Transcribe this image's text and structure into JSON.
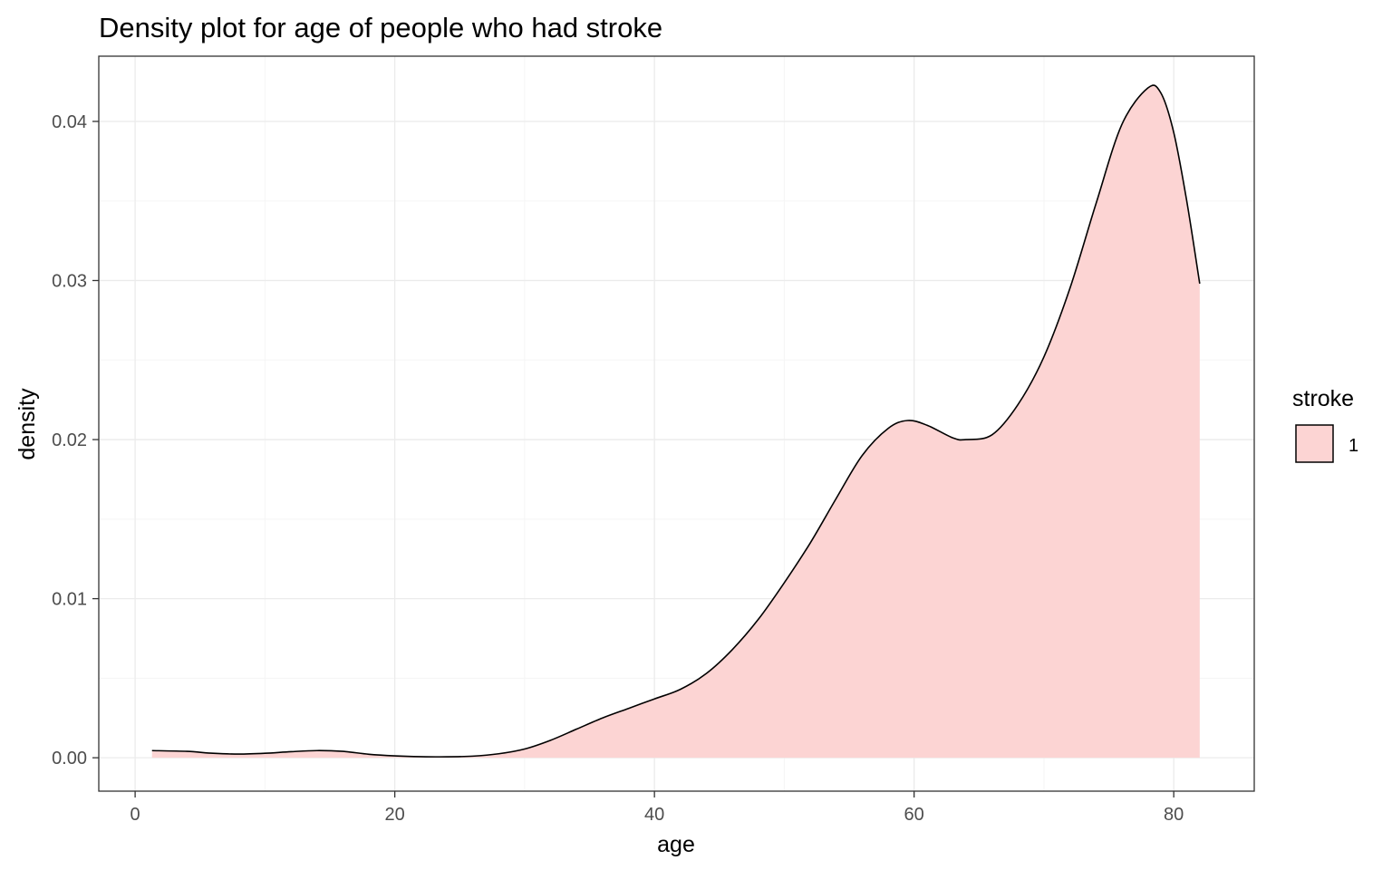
{
  "chart_data": {
    "type": "area",
    "title": "Density plot for age of people who had stroke",
    "xlabel": "age",
    "ylabel": "density",
    "xlim": [
      -2.8,
      86.2
    ],
    "ylim": [
      -0.0021,
      0.0441
    ],
    "x_ticks": [
      0,
      20,
      40,
      60,
      80
    ],
    "x_tick_labels": [
      "0",
      "20",
      "40",
      "60",
      "80"
    ],
    "y_ticks": [
      0,
      0.01,
      0.02,
      0.03,
      0.04
    ],
    "y_tick_labels": [
      "0.00",
      "0.01",
      "0.02",
      "0.03",
      "0.04"
    ],
    "grid": true,
    "legend": {
      "title": "stroke",
      "position": "right",
      "entries": [
        "1"
      ]
    },
    "series": [
      {
        "name": "1",
        "fill": "#fcd4d3",
        "line": "#000000",
        "x": [
          1.3,
          4,
          6,
          8,
          10,
          12,
          14,
          16,
          18,
          20,
          22,
          24,
          26,
          28,
          30,
          32,
          34,
          36,
          38,
          40,
          42,
          44,
          46,
          48,
          50,
          52,
          54,
          56,
          58,
          59.5,
          61,
          63,
          64,
          66,
          68,
          70,
          72,
          74,
          76,
          78,
          79,
          80,
          81,
          82
        ],
        "y": [
          0.00045,
          0.0004,
          0.00028,
          0.00023,
          0.00028,
          0.00038,
          0.00045,
          0.0004,
          0.00022,
          0.00012,
          7e-05,
          6e-05,
          0.0001,
          0.00025,
          0.00055,
          0.0011,
          0.0018,
          0.0025,
          0.0031,
          0.0037,
          0.0043,
          0.0053,
          0.0068,
          0.0087,
          0.011,
          0.0135,
          0.0163,
          0.019,
          0.0207,
          0.0212,
          0.0209,
          0.0201,
          0.02,
          0.0203,
          0.0222,
          0.0252,
          0.0295,
          0.0348,
          0.0398,
          0.0421,
          0.0418,
          0.0393,
          0.035,
          0.0298
        ]
      }
    ]
  },
  "colors": {
    "panel_border": "#333333",
    "grid_major": "#ebebeb",
    "grid_minor": "#f5f5f5",
    "tick_label": "#4d4d4d"
  }
}
